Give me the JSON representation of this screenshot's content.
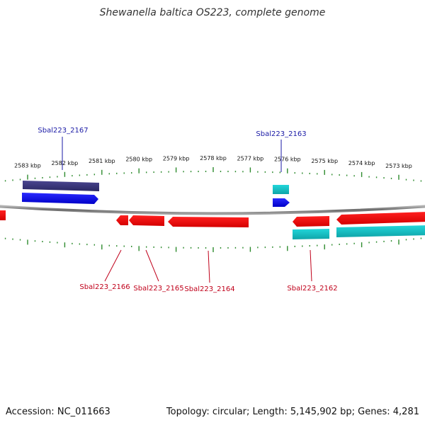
{
  "title": "Shewanella baltica OS223, complete genome",
  "footer": {
    "accession_label": "Accession:",
    "accession": "NC_011663",
    "topology": "Topology: circular; Length: 5,145,902 bp; Genes: 4,281"
  },
  "colors": {
    "background": "#ffffff",
    "backbone": "#8a8a8a",
    "tick_green": "#2e8b2e",
    "gene_forward_blue": "#0000ff",
    "gene_forward_navy": "#3d3a7a",
    "gene_reverse_red": "#ff0000",
    "gene_reverse_cyan": "#17c5c9",
    "label_blue": "#1a1aa6",
    "label_red": "#c0001a"
  },
  "scale": {
    "unit": "kbp",
    "ticks": [
      {
        "kbp": 2583,
        "label": "2583 kbp"
      },
      {
        "kbp": 2582,
        "label": "2582 kbp"
      },
      {
        "kbp": 2581,
        "label": "2581 kbp"
      },
      {
        "kbp": 2580,
        "label": "2580 kbp"
      },
      {
        "kbp": 2579,
        "label": "2579 kbp"
      },
      {
        "kbp": 2578,
        "label": "2578 kbp"
      },
      {
        "kbp": 2577,
        "label": "2577 kbp"
      },
      {
        "kbp": 2576,
        "label": "2576 kbp"
      },
      {
        "kbp": 2575,
        "label": "2575 kbp"
      },
      {
        "kbp": 2574,
        "label": "2574 kbp"
      },
      {
        "kbp": 2573,
        "label": "2573 kbp"
      }
    ]
  },
  "gene_labels": [
    {
      "name": "Sbal223_2167",
      "strand": "forward"
    },
    {
      "name": "Sbal223_2163",
      "strand": "forward"
    },
    {
      "name": "Sbal223_2166",
      "strand": "reverse"
    },
    {
      "name": "Sbal223_2165",
      "strand": "reverse"
    },
    {
      "name": "Sbal223_2164",
      "strand": "reverse"
    },
    {
      "name": "Sbal223_2162",
      "strand": "reverse"
    }
  ]
}
